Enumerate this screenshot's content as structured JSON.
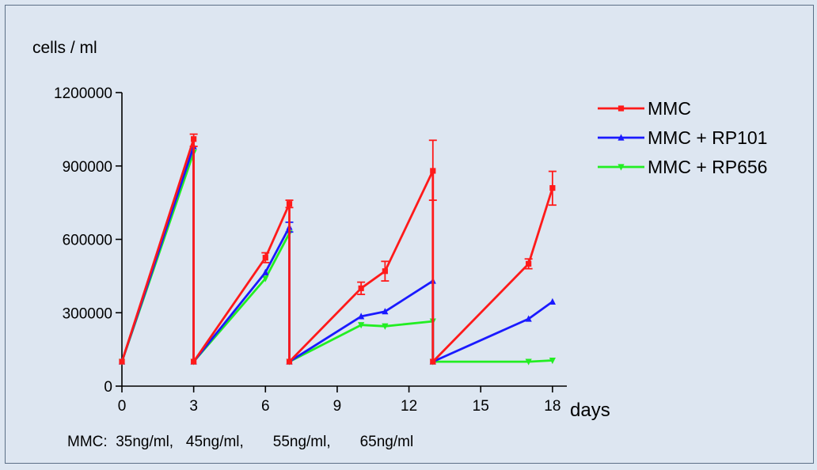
{
  "chart_data": {
    "type": "line",
    "ylabel": "cells / ml",
    "xlabel": "days",
    "xlim": [
      0,
      18.6
    ],
    "ylim": [
      0,
      1200000
    ],
    "x_ticks": [
      0,
      3,
      6,
      9,
      12,
      15,
      18
    ],
    "x_tick_labels": [
      "0",
      "3",
      "6",
      "9",
      "12",
      "15",
      "18"
    ],
    "y_ticks": [
      0,
      300000,
      600000,
      900000,
      1200000
    ],
    "y_tick_labels": [
      "0",
      "300000",
      "600000",
      "900000",
      "1200000"
    ],
    "legend_position": "top-right",
    "footnote": "MMC:  35ng/ml,   45ng/ml,       55ng/ml,       65ng/ml",
    "series": [
      {
        "name": "MMC",
        "color": "#ff1a1a",
        "marker": "square",
        "points": [
          [
            0,
            100000
          ],
          [
            3,
            1010000
          ],
          [
            3,
            100000
          ],
          [
            6,
            525000
          ],
          [
            7,
            745000
          ],
          [
            7,
            100000
          ],
          [
            10,
            400000
          ],
          [
            11,
            470000
          ],
          [
            13,
            880000
          ],
          [
            13,
            100000
          ],
          [
            17,
            500000
          ],
          [
            18,
            810000
          ]
        ],
        "error_bars": [
          [
            3,
            980000,
            1030000
          ],
          [
            6,
            505000,
            545000
          ],
          [
            7,
            730000,
            760000
          ],
          [
            10,
            375000,
            425000
          ],
          [
            11,
            430000,
            510000
          ],
          [
            13,
            760000,
            1005000
          ],
          [
            17,
            480000,
            520000
          ],
          [
            18,
            740000,
            878000
          ]
        ]
      },
      {
        "name": "MMC + RP101",
        "color": "#1a1aff",
        "marker": "triangle",
        "points": [
          [
            0,
            100000
          ],
          [
            3,
            980000
          ],
          [
            3,
            100000
          ],
          [
            6,
            465000
          ],
          [
            7,
            650000
          ],
          [
            7,
            100000
          ],
          [
            10,
            285000
          ],
          [
            11,
            305000
          ],
          [
            13,
            430000
          ],
          [
            13,
            100000
          ],
          [
            17,
            275000
          ],
          [
            18,
            345000
          ]
        ],
        "error_bars": [
          [
            7,
            630000,
            670000
          ]
        ]
      },
      {
        "name": "MMC + RP656",
        "color": "#22ee22",
        "marker": "inverted-triangle",
        "points": [
          [
            0,
            100000
          ],
          [
            3,
            955000
          ],
          [
            3,
            100000
          ],
          [
            6,
            440000
          ],
          [
            7,
            625000
          ],
          [
            7,
            100000
          ],
          [
            10,
            250000
          ],
          [
            11,
            245000
          ],
          [
            13,
            265000
          ],
          [
            13,
            100000
          ],
          [
            17,
            100000
          ],
          [
            18,
            105000
          ]
        ],
        "error_bars": []
      }
    ]
  }
}
